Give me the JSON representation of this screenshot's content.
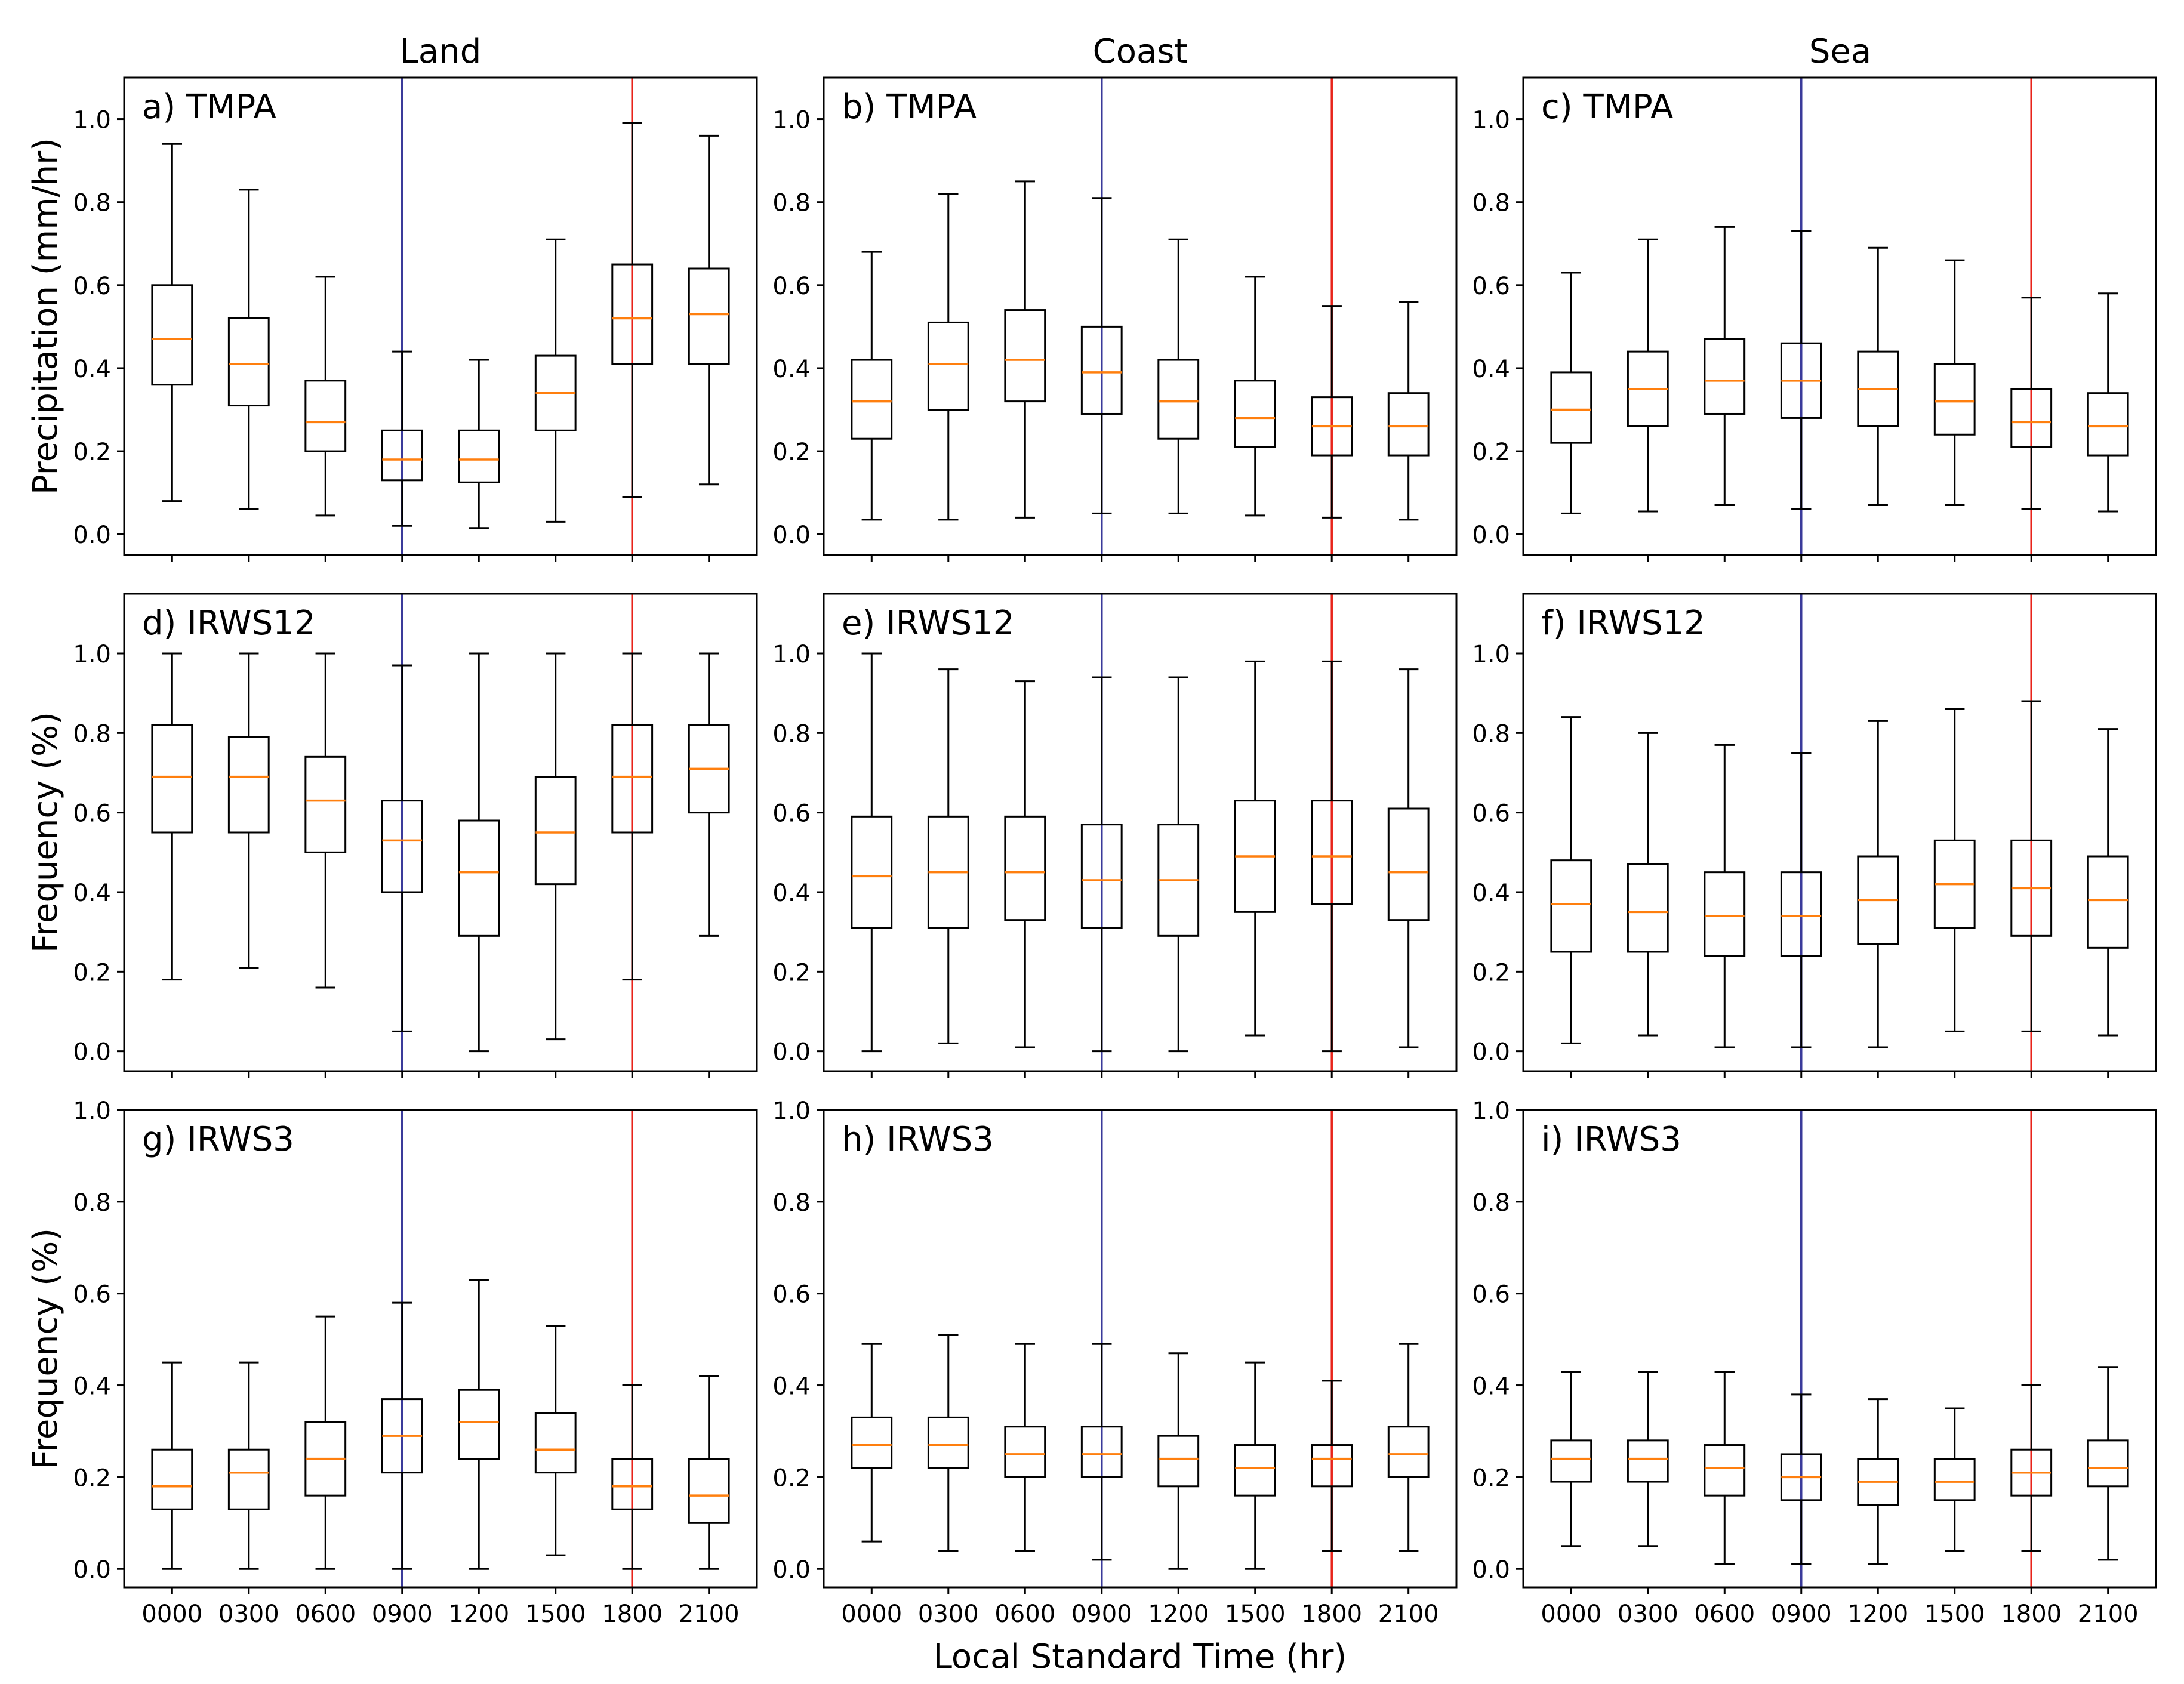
{
  "figure": {
    "column_titles": [
      "Land",
      "Coast",
      "Sea"
    ],
    "xlabel": "Local Standard Time (hr)",
    "row_ylabels": [
      "Precipitation (mm/hr)",
      "Frequency (%)",
      "Frequency (%)"
    ]
  },
  "chart_data": [
    {
      "type": "box",
      "title": "a) TMPA",
      "column": "Land",
      "ylabel": "Precipitation (mm/hr)",
      "xlabel": "",
      "ylim": [
        -0.05,
        1.1
      ],
      "yticks": [
        "0.0",
        "0.2",
        "0.4",
        "0.6",
        "0.8",
        "1.0"
      ],
      "categories": [
        "0000",
        "0300",
        "0600",
        "0900",
        "1200",
        "1500",
        "1800",
        "2100"
      ],
      "reference_lines": [
        {
          "at": "0900",
          "color": "#3a3a9a"
        },
        {
          "at": "1800",
          "color": "#e8231a"
        }
      ],
      "boxes": [
        [
          0.08,
          0.36,
          0.47,
          0.6,
          0.94
        ],
        [
          0.06,
          0.31,
          0.41,
          0.52,
          0.83
        ],
        [
          0.045,
          0.2,
          0.27,
          0.37,
          0.62
        ],
        [
          0.02,
          0.13,
          0.18,
          0.25,
          0.44
        ],
        [
          0.015,
          0.125,
          0.18,
          0.25,
          0.42
        ],
        [
          0.03,
          0.25,
          0.34,
          0.43,
          0.71
        ],
        [
          0.09,
          0.41,
          0.52,
          0.65,
          0.99
        ],
        [
          0.12,
          0.41,
          0.53,
          0.64,
          0.96
        ]
      ]
    },
    {
      "type": "box",
      "title": "b) TMPA",
      "column": "Coast",
      "ylabel": "",
      "xlabel": "",
      "ylim": [
        -0.05,
        1.1
      ],
      "yticks": [
        "0.0",
        "0.2",
        "0.4",
        "0.6",
        "0.8",
        "1.0"
      ],
      "categories": [
        "0000",
        "0300",
        "0600",
        "0900",
        "1200",
        "1500",
        "1800",
        "2100"
      ],
      "reference_lines": [
        {
          "at": "0900",
          "color": "#3a3a9a"
        },
        {
          "at": "1800",
          "color": "#e8231a"
        }
      ],
      "boxes": [
        [
          0.035,
          0.23,
          0.32,
          0.42,
          0.68
        ],
        [
          0.035,
          0.3,
          0.41,
          0.51,
          0.82
        ],
        [
          0.04,
          0.32,
          0.42,
          0.54,
          0.85
        ],
        [
          0.05,
          0.29,
          0.39,
          0.5,
          0.81
        ],
        [
          0.05,
          0.23,
          0.32,
          0.42,
          0.71
        ],
        [
          0.045,
          0.21,
          0.28,
          0.37,
          0.62
        ],
        [
          0.04,
          0.19,
          0.26,
          0.33,
          0.55
        ],
        [
          0.035,
          0.19,
          0.26,
          0.34,
          0.56
        ]
      ]
    },
    {
      "type": "box",
      "title": "c) TMPA",
      "column": "Sea",
      "ylabel": "",
      "xlabel": "",
      "ylim": [
        -0.05,
        1.1
      ],
      "yticks": [
        "0.0",
        "0.2",
        "0.4",
        "0.6",
        "0.8",
        "1.0"
      ],
      "categories": [
        "0000",
        "0300",
        "0600",
        "0900",
        "1200",
        "1500",
        "1800",
        "2100"
      ],
      "reference_lines": [
        {
          "at": "0900",
          "color": "#3a3a9a"
        },
        {
          "at": "1800",
          "color": "#e8231a"
        }
      ],
      "boxes": [
        [
          0.05,
          0.22,
          0.3,
          0.39,
          0.63
        ],
        [
          0.055,
          0.26,
          0.35,
          0.44,
          0.71
        ],
        [
          0.07,
          0.29,
          0.37,
          0.47,
          0.74
        ],
        [
          0.06,
          0.28,
          0.37,
          0.46,
          0.73
        ],
        [
          0.07,
          0.26,
          0.35,
          0.44,
          0.69
        ],
        [
          0.07,
          0.24,
          0.32,
          0.41,
          0.66
        ],
        [
          0.06,
          0.21,
          0.27,
          0.35,
          0.57
        ],
        [
          0.055,
          0.19,
          0.26,
          0.34,
          0.58
        ]
      ]
    },
    {
      "type": "box",
      "title": "d) IRWS12",
      "column": "Land",
      "ylabel": "Frequency (%)",
      "xlabel": "",
      "ylim": [
        -0.05,
        1.15
      ],
      "yticks": [
        "0.0",
        "0.2",
        "0.4",
        "0.6",
        "0.8",
        "1.0"
      ],
      "categories": [
        "0000",
        "0300",
        "0600",
        "0900",
        "1200",
        "1500",
        "1800",
        "2100"
      ],
      "reference_lines": [
        {
          "at": "0900",
          "color": "#3a3a9a"
        },
        {
          "at": "1800",
          "color": "#e8231a"
        }
      ],
      "boxes": [
        [
          0.18,
          0.55,
          0.69,
          0.82,
          1.0
        ],
        [
          0.21,
          0.55,
          0.69,
          0.79,
          1.0
        ],
        [
          0.16,
          0.5,
          0.63,
          0.74,
          1.0
        ],
        [
          0.05,
          0.4,
          0.53,
          0.63,
          0.97
        ],
        [
          0.0,
          0.29,
          0.45,
          0.58,
          1.0
        ],
        [
          0.03,
          0.42,
          0.55,
          0.69,
          1.0
        ],
        [
          0.18,
          0.55,
          0.69,
          0.82,
          1.0
        ],
        [
          0.29,
          0.6,
          0.71,
          0.82,
          1.0
        ]
      ]
    },
    {
      "type": "box",
      "title": "e) IRWS12",
      "column": "Coast",
      "ylabel": "",
      "xlabel": "",
      "ylim": [
        -0.05,
        1.15
      ],
      "yticks": [
        "0.0",
        "0.2",
        "0.4",
        "0.6",
        "0.8",
        "1.0"
      ],
      "categories": [
        "0000",
        "0300",
        "0600",
        "0900",
        "1200",
        "1500",
        "1800",
        "2100"
      ],
      "reference_lines": [
        {
          "at": "0900",
          "color": "#3a3a9a"
        },
        {
          "at": "1800",
          "color": "#e8231a"
        }
      ],
      "boxes": [
        [
          0.0,
          0.31,
          0.44,
          0.59,
          1.0
        ],
        [
          0.02,
          0.31,
          0.45,
          0.59,
          0.96
        ],
        [
          0.01,
          0.33,
          0.45,
          0.59,
          0.93
        ],
        [
          0.0,
          0.31,
          0.43,
          0.57,
          0.94
        ],
        [
          0.0,
          0.29,
          0.43,
          0.57,
          0.94
        ],
        [
          0.04,
          0.35,
          0.49,
          0.63,
          0.98
        ],
        [
          0.0,
          0.37,
          0.49,
          0.63,
          0.98
        ],
        [
          0.01,
          0.33,
          0.45,
          0.61,
          0.96
        ]
      ]
    },
    {
      "type": "box",
      "title": "f) IRWS12",
      "column": "Sea",
      "ylabel": "",
      "xlabel": "",
      "ylim": [
        -0.05,
        1.15
      ],
      "yticks": [
        "0.0",
        "0.2",
        "0.4",
        "0.6",
        "0.8",
        "1.0"
      ],
      "categories": [
        "0000",
        "0300",
        "0600",
        "0900",
        "1200",
        "1500",
        "1800",
        "2100"
      ],
      "reference_lines": [
        {
          "at": "0900",
          "color": "#3a3a9a"
        },
        {
          "at": "1800",
          "color": "#e8231a"
        }
      ],
      "boxes": [
        [
          0.02,
          0.25,
          0.37,
          0.48,
          0.84
        ],
        [
          0.04,
          0.25,
          0.35,
          0.47,
          0.8
        ],
        [
          0.01,
          0.24,
          0.34,
          0.45,
          0.77
        ],
        [
          0.01,
          0.24,
          0.34,
          0.45,
          0.75
        ],
        [
          0.01,
          0.27,
          0.38,
          0.49,
          0.83
        ],
        [
          0.05,
          0.31,
          0.42,
          0.53,
          0.86
        ],
        [
          0.05,
          0.29,
          0.41,
          0.53,
          0.88
        ],
        [
          0.04,
          0.26,
          0.38,
          0.49,
          0.81
        ]
      ]
    },
    {
      "type": "box",
      "title": "g) IRWS3",
      "column": "Land",
      "ylabel": "Frequency (%)",
      "xlabel": "Local Standard Time (hr)",
      "ylim": [
        -0.04,
        1.0
      ],
      "yticks": [
        "0.0",
        "0.2",
        "0.4",
        "0.6",
        "0.8",
        "1.0"
      ],
      "categories": [
        "0000",
        "0300",
        "0600",
        "0900",
        "1200",
        "1500",
        "1800",
        "2100"
      ],
      "reference_lines": [
        {
          "at": "0900",
          "color": "#3a3a9a"
        },
        {
          "at": "1800",
          "color": "#e8231a"
        }
      ],
      "boxes": [
        [
          0.0,
          0.13,
          0.18,
          0.26,
          0.45
        ],
        [
          0.0,
          0.13,
          0.21,
          0.26,
          0.45
        ],
        [
          0.0,
          0.16,
          0.24,
          0.32,
          0.55
        ],
        [
          0.0,
          0.21,
          0.29,
          0.37,
          0.58
        ],
        [
          0.0,
          0.24,
          0.32,
          0.39,
          0.63
        ],
        [
          0.03,
          0.21,
          0.26,
          0.34,
          0.53
        ],
        [
          0.0,
          0.13,
          0.18,
          0.24,
          0.4
        ],
        [
          0.0,
          0.1,
          0.16,
          0.24,
          0.42
        ]
      ]
    },
    {
      "type": "box",
      "title": "h) IRWS3",
      "column": "Coast",
      "ylabel": "",
      "xlabel": "Local Standard Time (hr)",
      "ylim": [
        -0.04,
        1.0
      ],
      "yticks": [
        "0.0",
        "0.2",
        "0.4",
        "0.6",
        "0.8",
        "1.0"
      ],
      "categories": [
        "0000",
        "0300",
        "0600",
        "0900",
        "1200",
        "1500",
        "1800",
        "2100"
      ],
      "reference_lines": [
        {
          "at": "0900",
          "color": "#3a3a9a"
        },
        {
          "at": "1800",
          "color": "#e8231a"
        }
      ],
      "boxes": [
        [
          0.06,
          0.22,
          0.27,
          0.33,
          0.49
        ],
        [
          0.04,
          0.22,
          0.27,
          0.33,
          0.51
        ],
        [
          0.04,
          0.2,
          0.25,
          0.31,
          0.49
        ],
        [
          0.02,
          0.2,
          0.25,
          0.31,
          0.49
        ],
        [
          0.0,
          0.18,
          0.24,
          0.29,
          0.47
        ],
        [
          0.0,
          0.16,
          0.22,
          0.27,
          0.45
        ],
        [
          0.04,
          0.18,
          0.24,
          0.27,
          0.41
        ],
        [
          0.04,
          0.2,
          0.25,
          0.31,
          0.49
        ]
      ]
    },
    {
      "type": "box",
      "title": "i) IRWS3",
      "column": "Sea",
      "ylabel": "",
      "xlabel": "Local Standard Time (hr)",
      "ylim": [
        -0.04,
        1.0
      ],
      "yticks": [
        "0.0",
        "0.2",
        "0.4",
        "0.6",
        "0.8",
        "1.0"
      ],
      "categories": [
        "0000",
        "0300",
        "0600",
        "0900",
        "1200",
        "1500",
        "1800",
        "2100"
      ],
      "reference_lines": [
        {
          "at": "0900",
          "color": "#3a3a9a"
        },
        {
          "at": "1800",
          "color": "#e8231a"
        }
      ],
      "boxes": [
        [
          0.05,
          0.19,
          0.24,
          0.28,
          0.43
        ],
        [
          0.05,
          0.19,
          0.24,
          0.28,
          0.43
        ],
        [
          0.01,
          0.16,
          0.22,
          0.27,
          0.43
        ],
        [
          0.01,
          0.15,
          0.2,
          0.25,
          0.38
        ],
        [
          0.01,
          0.14,
          0.19,
          0.24,
          0.37
        ],
        [
          0.04,
          0.15,
          0.19,
          0.24,
          0.35
        ],
        [
          0.04,
          0.16,
          0.21,
          0.26,
          0.4
        ],
        [
          0.02,
          0.18,
          0.22,
          0.28,
          0.44
        ]
      ]
    }
  ],
  "colors": {
    "box": "#000000",
    "median": "#ff7f0e",
    "morning_line": "#3a3a9a",
    "evening_line": "#e8231a",
    "background": "#ffffff"
  }
}
